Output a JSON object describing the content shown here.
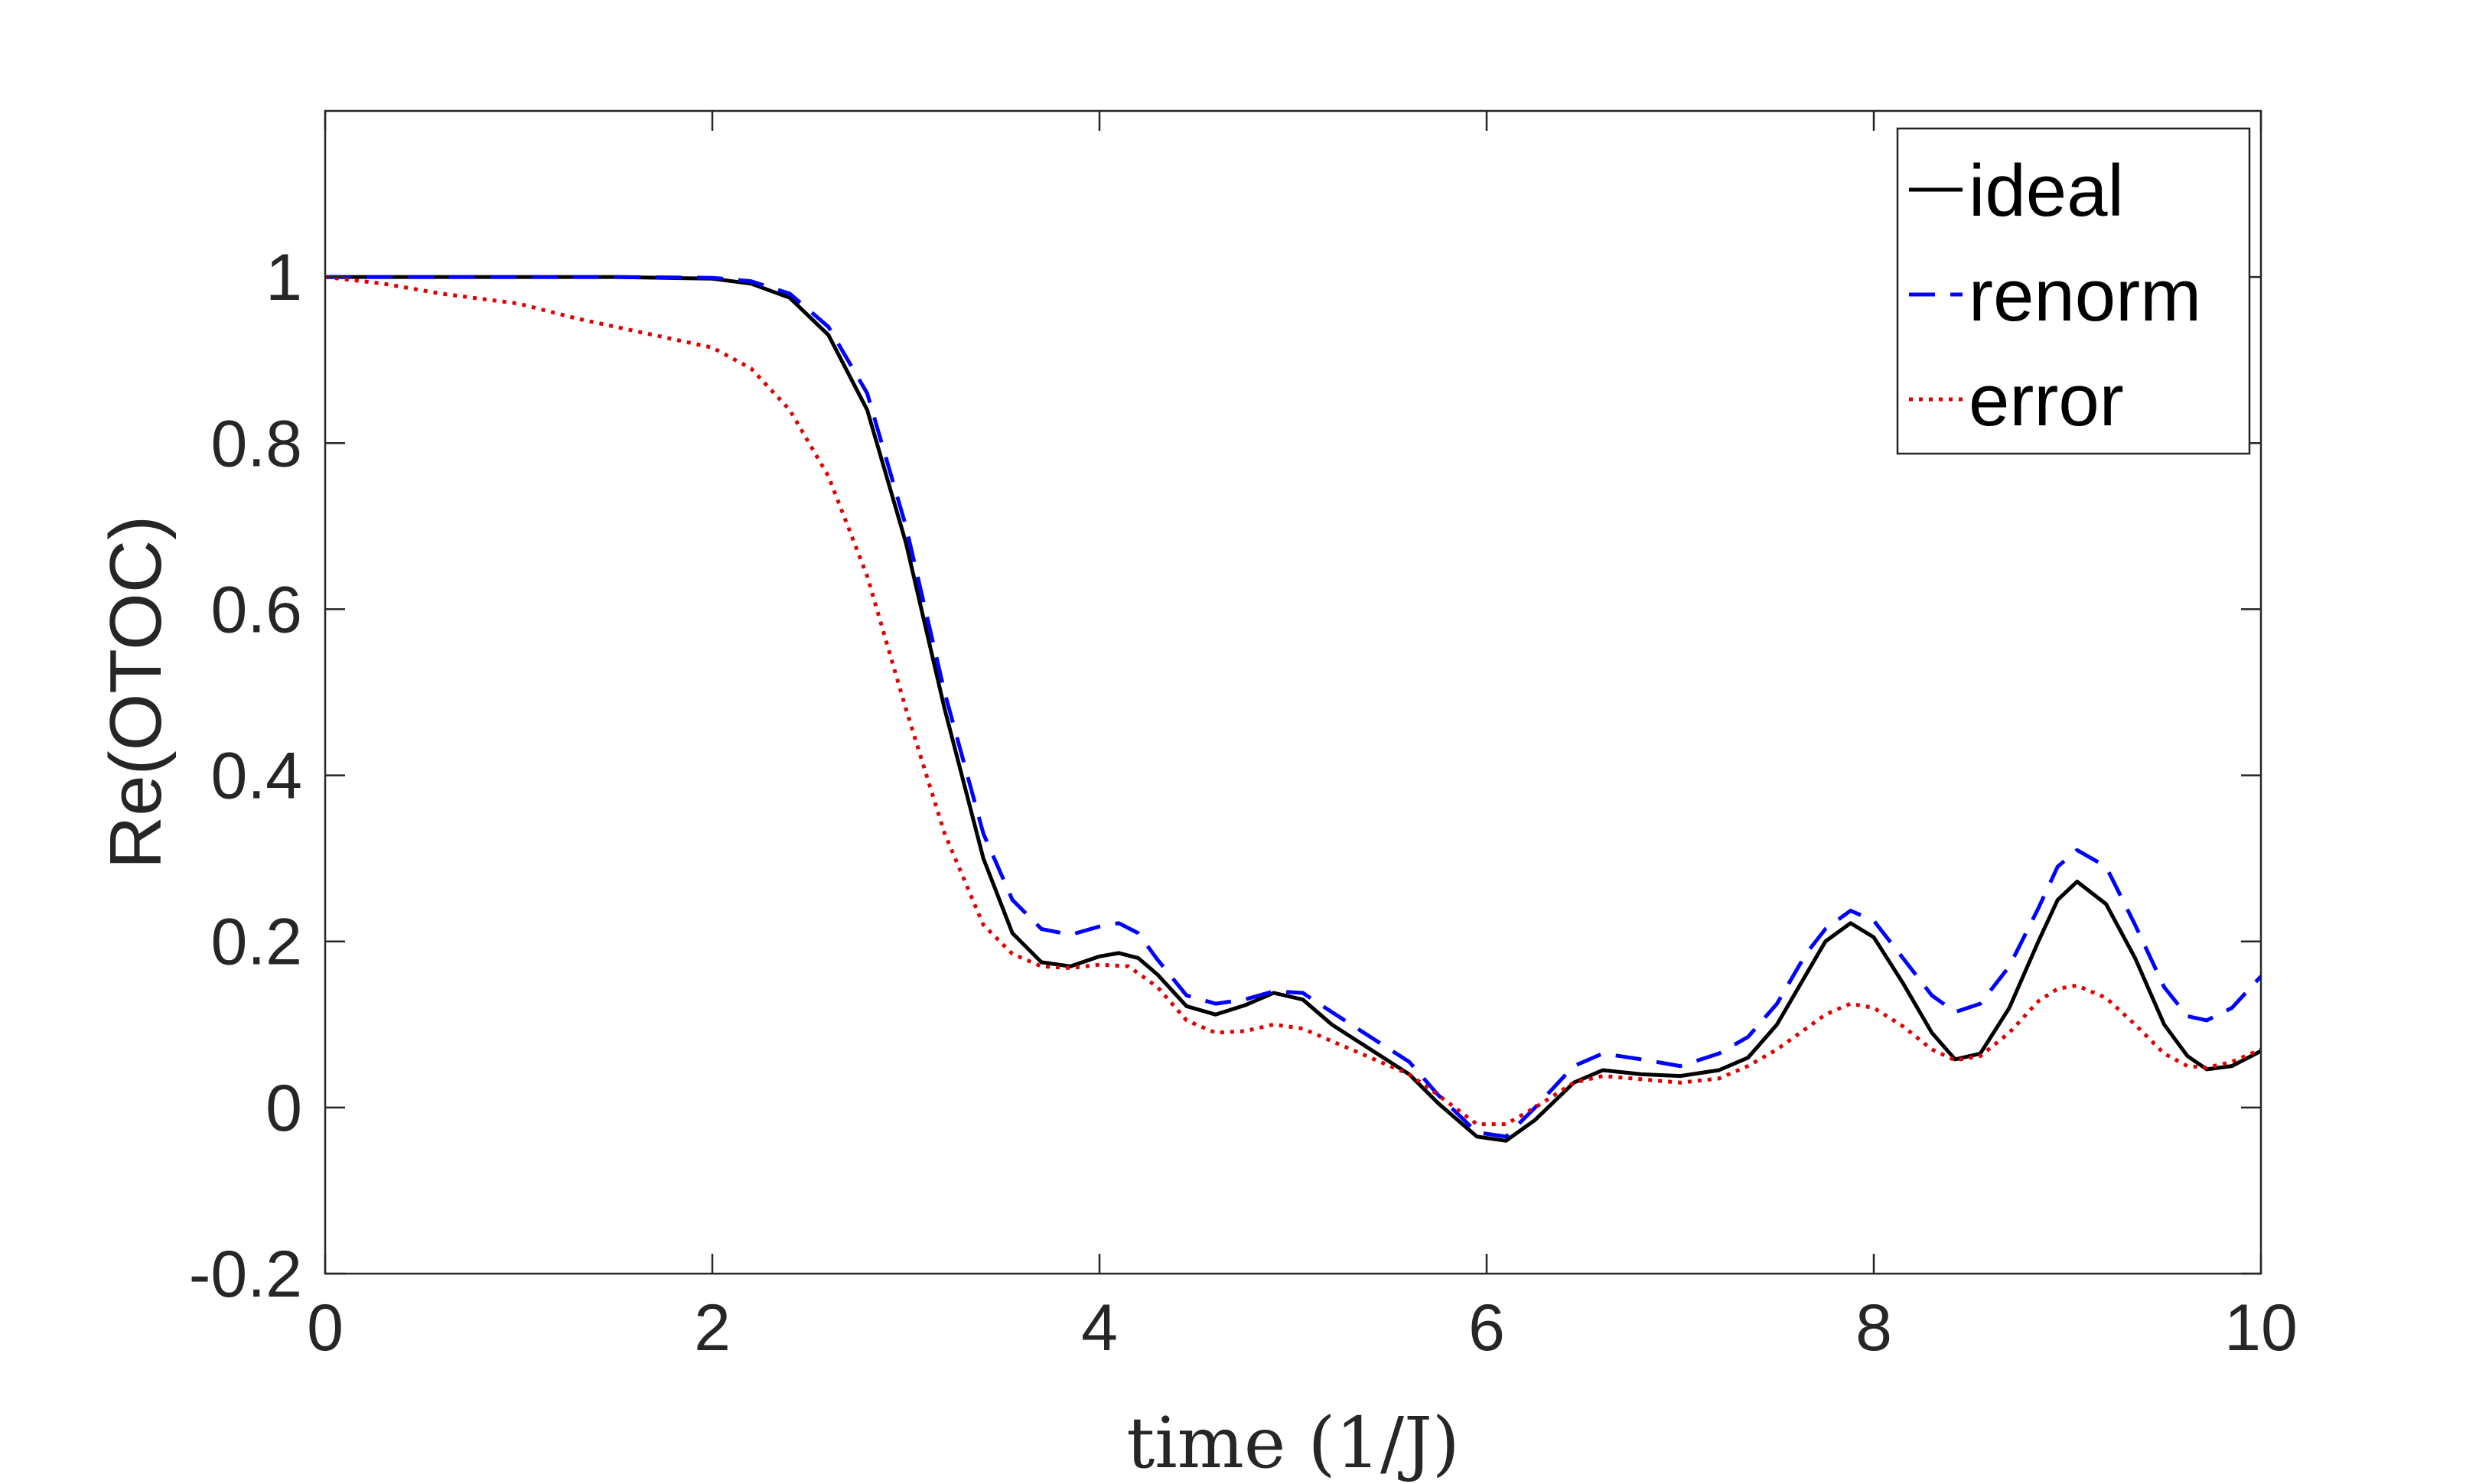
{
  "chart_data": {
    "type": "line",
    "xlabel": "time (1/J)",
    "ylabel": "Re(OTOC)",
    "xlim": [
      0,
      10
    ],
    "ylim": [
      -0.2,
      1.2
    ],
    "xticks": [
      0,
      2,
      4,
      6,
      8,
      10
    ],
    "xtick_labels": [
      "0",
      "2",
      "4",
      "6",
      "8",
      "10"
    ],
    "yticks": [
      -0.2,
      0,
      0.2,
      0.4,
      0.6,
      0.8,
      1
    ],
    "ytick_labels": [
      "-0.2",
      "0",
      "0.2",
      "0.4",
      "0.6",
      "0.8",
      "1"
    ],
    "grid": false,
    "legend_position": "top-right",
    "series": [
      {
        "name": "ideal",
        "color": "#000000",
        "style": "solid",
        "points": [
          [
            0,
            1
          ],
          [
            0.5,
            1
          ],
          [
            1,
            1
          ],
          [
            1.5,
            1
          ],
          [
            2,
            0.998
          ],
          [
            2.2,
            0.992
          ],
          [
            2.4,
            0.975
          ],
          [
            2.6,
            0.93
          ],
          [
            2.8,
            0.84
          ],
          [
            3.0,
            0.68
          ],
          [
            3.2,
            0.48
          ],
          [
            3.4,
            0.3
          ],
          [
            3.55,
            0.21
          ],
          [
            3.7,
            0.175
          ],
          [
            3.85,
            0.17
          ],
          [
            4.0,
            0.182
          ],
          [
            4.1,
            0.186
          ],
          [
            4.2,
            0.18
          ],
          [
            4.3,
            0.16
          ],
          [
            4.45,
            0.122
          ],
          [
            4.6,
            0.112
          ],
          [
            4.75,
            0.123
          ],
          [
            4.9,
            0.138
          ],
          [
            5.05,
            0.13
          ],
          [
            5.2,
            0.1
          ],
          [
            5.4,
            0.07
          ],
          [
            5.6,
            0.04
          ],
          [
            5.75,
            0.005
          ],
          [
            5.95,
            -0.035
          ],
          [
            6.1,
            -0.04
          ],
          [
            6.25,
            -0.015
          ],
          [
            6.45,
            0.03
          ],
          [
            6.6,
            0.045
          ],
          [
            6.8,
            0.04
          ],
          [
            7.0,
            0.038
          ],
          [
            7.2,
            0.045
          ],
          [
            7.35,
            0.06
          ],
          [
            7.5,
            0.1
          ],
          [
            7.65,
            0.16
          ],
          [
            7.75,
            0.2
          ],
          [
            7.88,
            0.222
          ],
          [
            8.0,
            0.205
          ],
          [
            8.15,
            0.15
          ],
          [
            8.3,
            0.09
          ],
          [
            8.42,
            0.058
          ],
          [
            8.55,
            0.065
          ],
          [
            8.7,
            0.12
          ],
          [
            8.85,
            0.2
          ],
          [
            8.95,
            0.25
          ],
          [
            9.05,
            0.272
          ],
          [
            9.2,
            0.245
          ],
          [
            9.35,
            0.18
          ],
          [
            9.5,
            0.1
          ],
          [
            9.62,
            0.062
          ],
          [
            9.72,
            0.046
          ],
          [
            9.85,
            0.05
          ],
          [
            10,
            0.068
          ]
        ]
      },
      {
        "name": "renorm",
        "color": "#0000ff",
        "style": "dashed",
        "points": [
          [
            0,
            1
          ],
          [
            0.5,
            1
          ],
          [
            1,
            1
          ],
          [
            1.5,
            1
          ],
          [
            2,
            0.999
          ],
          [
            2.2,
            0.995
          ],
          [
            2.4,
            0.98
          ],
          [
            2.6,
            0.94
          ],
          [
            2.8,
            0.86
          ],
          [
            3.0,
            0.7
          ],
          [
            3.2,
            0.5
          ],
          [
            3.4,
            0.33
          ],
          [
            3.55,
            0.25
          ],
          [
            3.7,
            0.215
          ],
          [
            3.85,
            0.208
          ],
          [
            4.0,
            0.218
          ],
          [
            4.1,
            0.222
          ],
          [
            4.2,
            0.21
          ],
          [
            4.3,
            0.178
          ],
          [
            4.45,
            0.135
          ],
          [
            4.6,
            0.125
          ],
          [
            4.75,
            0.13
          ],
          [
            4.9,
            0.14
          ],
          [
            5.05,
            0.138
          ],
          [
            5.2,
            0.115
          ],
          [
            5.4,
            0.085
          ],
          [
            5.6,
            0.055
          ],
          [
            5.75,
            0.015
          ],
          [
            5.95,
            -0.03
          ],
          [
            6.1,
            -0.035
          ],
          [
            6.25,
            0.0
          ],
          [
            6.45,
            0.05
          ],
          [
            6.6,
            0.065
          ],
          [
            6.8,
            0.058
          ],
          [
            7.0,
            0.05
          ],
          [
            7.2,
            0.065
          ],
          [
            7.35,
            0.085
          ],
          [
            7.5,
            0.125
          ],
          [
            7.65,
            0.185
          ],
          [
            7.75,
            0.215
          ],
          [
            7.88,
            0.237
          ],
          [
            8.0,
            0.225
          ],
          [
            8.15,
            0.18
          ],
          [
            8.3,
            0.135
          ],
          [
            8.42,
            0.115
          ],
          [
            8.55,
            0.125
          ],
          [
            8.7,
            0.17
          ],
          [
            8.85,
            0.24
          ],
          [
            8.95,
            0.29
          ],
          [
            9.05,
            0.31
          ],
          [
            9.2,
            0.29
          ],
          [
            9.35,
            0.22
          ],
          [
            9.5,
            0.145
          ],
          [
            9.62,
            0.11
          ],
          [
            9.72,
            0.105
          ],
          [
            9.85,
            0.12
          ],
          [
            10,
            0.158
          ]
        ]
      },
      {
        "name": "error",
        "color": "#e00000",
        "style": "dotted",
        "points": [
          [
            0,
            1
          ],
          [
            0.3,
            0.992
          ],
          [
            0.6,
            0.98
          ],
          [
            1.0,
            0.968
          ],
          [
            1.3,
            0.95
          ],
          [
            1.6,
            0.935
          ],
          [
            2.0,
            0.915
          ],
          [
            2.2,
            0.89
          ],
          [
            2.4,
            0.84
          ],
          [
            2.6,
            0.76
          ],
          [
            2.8,
            0.64
          ],
          [
            3.0,
            0.48
          ],
          [
            3.2,
            0.33
          ],
          [
            3.4,
            0.22
          ],
          [
            3.55,
            0.185
          ],
          [
            3.7,
            0.17
          ],
          [
            3.85,
            0.168
          ],
          [
            4.0,
            0.172
          ],
          [
            4.15,
            0.17
          ],
          [
            4.3,
            0.145
          ],
          [
            4.45,
            0.105
          ],
          [
            4.6,
            0.09
          ],
          [
            4.75,
            0.092
          ],
          [
            4.9,
            0.1
          ],
          [
            5.05,
            0.095
          ],
          [
            5.2,
            0.08
          ],
          [
            5.4,
            0.06
          ],
          [
            5.6,
            0.04
          ],
          [
            5.75,
            0.015
          ],
          [
            5.95,
            -0.02
          ],
          [
            6.1,
            -0.02
          ],
          [
            6.25,
            0.0
          ],
          [
            6.45,
            0.03
          ],
          [
            6.6,
            0.038
          ],
          [
            6.8,
            0.034
          ],
          [
            7.0,
            0.03
          ],
          [
            7.2,
            0.035
          ],
          [
            7.35,
            0.05
          ],
          [
            7.5,
            0.07
          ],
          [
            7.65,
            0.095
          ],
          [
            7.75,
            0.112
          ],
          [
            7.88,
            0.125
          ],
          [
            8.0,
            0.12
          ],
          [
            8.15,
            0.098
          ],
          [
            8.3,
            0.07
          ],
          [
            8.42,
            0.057
          ],
          [
            8.55,
            0.062
          ],
          [
            8.7,
            0.09
          ],
          [
            8.85,
            0.128
          ],
          [
            8.95,
            0.143
          ],
          [
            9.05,
            0.147
          ],
          [
            9.2,
            0.132
          ],
          [
            9.35,
            0.1
          ],
          [
            9.5,
            0.065
          ],
          [
            9.62,
            0.05
          ],
          [
            9.72,
            0.048
          ],
          [
            9.85,
            0.055
          ],
          [
            10,
            0.07
          ]
        ]
      }
    ]
  }
}
